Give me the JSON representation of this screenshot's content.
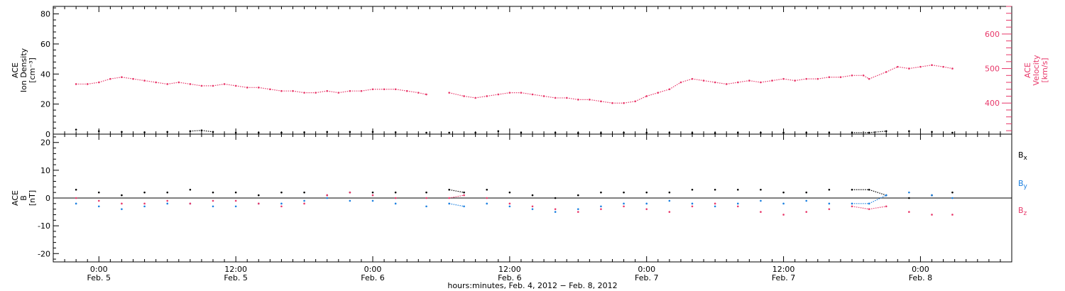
{
  "chart_data": [
    {
      "type": "scatter",
      "panel": "top",
      "left_axis": {
        "label_lines": [
          "ACE",
          "Ion Density",
          "[cm⁻³]"
        ],
        "ylim": [
          0,
          85
        ],
        "ticks": [
          "0",
          "20",
          "40",
          "60",
          "80"
        ]
      },
      "right_axis": {
        "label_lines": [
          "ACE",
          "Velocity",
          "[km/s]"
        ],
        "ylim": [
          310,
          680
        ],
        "ticks": [
          "400",
          "500",
          "600"
        ],
        "color": "#e8386a"
      },
      "series": [
        {
          "color": "#e8386a",
          "axis": "right",
          "points": [
            [
              -2,
              455
            ],
            [
              -1,
              455
            ],
            [
              0,
              460
            ],
            [
              1,
              470
            ],
            [
              2,
              475
            ],
            [
              3,
              470
            ],
            [
              4,
              465
            ],
            [
              5,
              460
            ],
            [
              6,
              455
            ],
            [
              7,
              460
            ],
            [
              8,
              455
            ],
            [
              9,
              450
            ],
            [
              10,
              450
            ],
            [
              11,
              455
            ],
            [
              12,
              450
            ],
            [
              13,
              445
            ],
            [
              14,
              445
            ],
            [
              15,
              440
            ],
            [
              16,
              435
            ],
            [
              17,
              435
            ],
            [
              18,
              430
            ],
            [
              19,
              430
            ],
            [
              20,
              435
            ],
            [
              21,
              430
            ],
            [
              22,
              435
            ],
            [
              23,
              435
            ],
            [
              24,
              440
            ],
            [
              25,
              440
            ],
            [
              26,
              440
            ],
            [
              27,
              435
            ],
            [
              28,
              430
            ],
            [
              28.7,
              425
            ],
            [
              30.7,
              430
            ],
            [
              32,
              420
            ],
            [
              33,
              415
            ],
            [
              34,
              420
            ],
            [
              35,
              425
            ],
            [
              36,
              430
            ],
            [
              37,
              430
            ],
            [
              38,
              425
            ],
            [
              39,
              420
            ],
            [
              40,
              415
            ],
            [
              41,
              415
            ],
            [
              42,
              410
            ],
            [
              43,
              410
            ],
            [
              44,
              405
            ],
            [
              45,
              400
            ],
            [
              46,
              400
            ],
            [
              47,
              405
            ],
            [
              48,
              420
            ],
            [
              49,
              430
            ],
            [
              50,
              440
            ],
            [
              51,
              460
            ],
            [
              52,
              470
            ],
            [
              53,
              465
            ],
            [
              54,
              460
            ],
            [
              55,
              455
            ],
            [
              56,
              460
            ],
            [
              57,
              465
            ],
            [
              58,
              460
            ],
            [
              59,
              465
            ],
            [
              60,
              470
            ],
            [
              61,
              465
            ],
            [
              62,
              470
            ],
            [
              63,
              470
            ],
            [
              64,
              475
            ],
            [
              65,
              475
            ],
            [
              66,
              480
            ],
            [
              67,
              480
            ],
            [
              67.5,
              470
            ],
            [
              69,
              490
            ],
            [
              70,
              505
            ],
            [
              71,
              500
            ],
            [
              72,
              505
            ],
            [
              73,
              510
            ],
            [
              74,
              505
            ],
            [
              74.8,
              500
            ]
          ]
        },
        {
          "color": "#000000",
          "axis": "left",
          "points": [
            [
              -2,
              3
            ],
            [
              0,
              2
            ],
            [
              2,
              1.5
            ],
            [
              4,
              1.2
            ],
            [
              6,
              1.5
            ],
            [
              8,
              2
            ],
            [
              9,
              2.5
            ],
            [
              10,
              1.5
            ],
            [
              12,
              1
            ],
            [
              14,
              1
            ],
            [
              16,
              1
            ],
            [
              18,
              1.2
            ],
            [
              20,
              1.5
            ],
            [
              22,
              1.5
            ],
            [
              24,
              1.5
            ],
            [
              26,
              1.2
            ],
            [
              28.7,
              1
            ],
            [
              30.7,
              1
            ],
            [
              33,
              1
            ],
            [
              35,
              2
            ],
            [
              37,
              1
            ],
            [
              40,
              1
            ],
            [
              42,
              0.8
            ],
            [
              44,
              0.8
            ],
            [
              46,
              1
            ],
            [
              48,
              1
            ],
            [
              50,
              1
            ],
            [
              52,
              0.8
            ],
            [
              54,
              0.8
            ],
            [
              56,
              1
            ],
            [
              58,
              1
            ],
            [
              60,
              1
            ],
            [
              62,
              1
            ],
            [
              64,
              1
            ],
            [
              66,
              1
            ],
            [
              67.5,
              1
            ],
            [
              69,
              2
            ],
            [
              71,
              2
            ],
            [
              73,
              1.5
            ],
            [
              74.8,
              1
            ]
          ]
        }
      ]
    },
    {
      "type": "scatter",
      "panel": "bottom",
      "left_axis": {
        "label_lines": [
          "ACE",
          "B",
          "[nT]"
        ],
        "ylim": [
          -23,
          23
        ],
        "ticks": [
          "-20",
          "-10",
          "0",
          "10",
          "20"
        ]
      },
      "series": [
        {
          "name_main": "B",
          "name_sub": "x",
          "color": "#000000",
          "points": [
            [
              -2,
              3
            ],
            [
              0,
              2
            ],
            [
              2,
              1
            ],
            [
              4,
              2
            ],
            [
              6,
              2
            ],
            [
              8,
              3
            ],
            [
              10,
              2
            ],
            [
              12,
              2
            ],
            [
              14,
              1
            ],
            [
              16,
              2
            ],
            [
              18,
              2
            ],
            [
              20,
              1
            ],
            [
              22,
              2
            ],
            [
              24,
              2
            ],
            [
              26,
              2
            ],
            [
              28.7,
              2
            ],
            [
              30.7,
              3
            ],
            [
              32,
              2
            ],
            [
              34,
              3
            ],
            [
              36,
              2
            ],
            [
              38,
              1
            ],
            [
              40,
              0
            ],
            [
              42,
              1
            ],
            [
              44,
              2
            ],
            [
              46,
              2
            ],
            [
              48,
              2
            ],
            [
              50,
              2
            ],
            [
              52,
              3
            ],
            [
              54,
              3
            ],
            [
              56,
              3
            ],
            [
              58,
              3
            ],
            [
              60,
              2
            ],
            [
              62,
              2
            ],
            [
              64,
              3
            ],
            [
              66,
              3
            ],
            [
              67.5,
              3
            ],
            [
              69,
              1
            ],
            [
              71,
              0
            ],
            [
              73,
              1
            ],
            [
              74.8,
              2
            ]
          ]
        },
        {
          "name_main": "B",
          "name_sub": "y",
          "color": "#1a7fe0",
          "points": [
            [
              -2,
              -2
            ],
            [
              0,
              -3
            ],
            [
              2,
              -4
            ],
            [
              4,
              -3
            ],
            [
              6,
              -2
            ],
            [
              8,
              -2
            ],
            [
              10,
              -3
            ],
            [
              12,
              -3
            ],
            [
              14,
              -2
            ],
            [
              16,
              -2
            ],
            [
              18,
              -1
            ],
            [
              20,
              0
            ],
            [
              22,
              -1
            ],
            [
              24,
              -1
            ],
            [
              26,
              -2
            ],
            [
              28.7,
              -3
            ],
            [
              30.7,
              -2
            ],
            [
              32,
              -3
            ],
            [
              34,
              -2
            ],
            [
              36,
              -3
            ],
            [
              38,
              -4
            ],
            [
              40,
              -5
            ],
            [
              42,
              -4
            ],
            [
              44,
              -3
            ],
            [
              46,
              -2
            ],
            [
              48,
              -2
            ],
            [
              50,
              -1
            ],
            [
              52,
              -2
            ],
            [
              54,
              -3
            ],
            [
              56,
              -2
            ],
            [
              58,
              -1
            ],
            [
              60,
              -2
            ],
            [
              62,
              -1
            ],
            [
              64,
              -2
            ],
            [
              66,
              -2
            ],
            [
              67.5,
              -2
            ],
            [
              69,
              1
            ],
            [
              71,
              2
            ],
            [
              73,
              1
            ],
            [
              74.8,
              0
            ]
          ]
        },
        {
          "name_main": "B",
          "name_sub": "z",
          "color": "#e8386a",
          "points": [
            [
              -2,
              0
            ],
            [
              0,
              -1
            ],
            [
              2,
              -2
            ],
            [
              4,
              -2
            ],
            [
              6,
              -1
            ],
            [
              8,
              -2
            ],
            [
              10,
              -1
            ],
            [
              12,
              -1
            ],
            [
              14,
              -2
            ],
            [
              16,
              -3
            ],
            [
              18,
              -2
            ],
            [
              20,
              1
            ],
            [
              22,
              2
            ],
            [
              24,
              1
            ],
            [
              26,
              0
            ],
            [
              28.7,
              0
            ],
            [
              30.7,
              0
            ],
            [
              32,
              1
            ],
            [
              34,
              0
            ],
            [
              36,
              -2
            ],
            [
              38,
              -3
            ],
            [
              40,
              -4
            ],
            [
              42,
              -5
            ],
            [
              44,
              -4
            ],
            [
              46,
              -3
            ],
            [
              48,
              -4
            ],
            [
              50,
              -5
            ],
            [
              52,
              -3
            ],
            [
              54,
              -2
            ],
            [
              56,
              -3
            ],
            [
              58,
              -5
            ],
            [
              60,
              -6
            ],
            [
              62,
              -5
            ],
            [
              64,
              -4
            ],
            [
              66,
              -3
            ],
            [
              67.5,
              -4
            ],
            [
              69,
              -3
            ],
            [
              71,
              -5
            ],
            [
              73,
              -6
            ],
            [
              74.8,
              -6
            ]
          ]
        }
      ]
    }
  ],
  "x_axis": {
    "range_hours": [
      -4,
      80
    ],
    "tick_times": [
      "0:00",
      "12:00",
      "0:00",
      "12:00",
      "0:00",
      "12:00",
      "0:00"
    ],
    "tick_dates": [
      "Feb. 5",
      "Feb. 5",
      "Feb. 6",
      "Feb. 6",
      "Feb. 7",
      "Feb. 7",
      "Feb. 8"
    ],
    "tick_hours": [
      0,
      12,
      24,
      36,
      48,
      60,
      72
    ],
    "title": "hours:minutes, Feb.  4, 2012 − Feb.  8, 2012"
  }
}
